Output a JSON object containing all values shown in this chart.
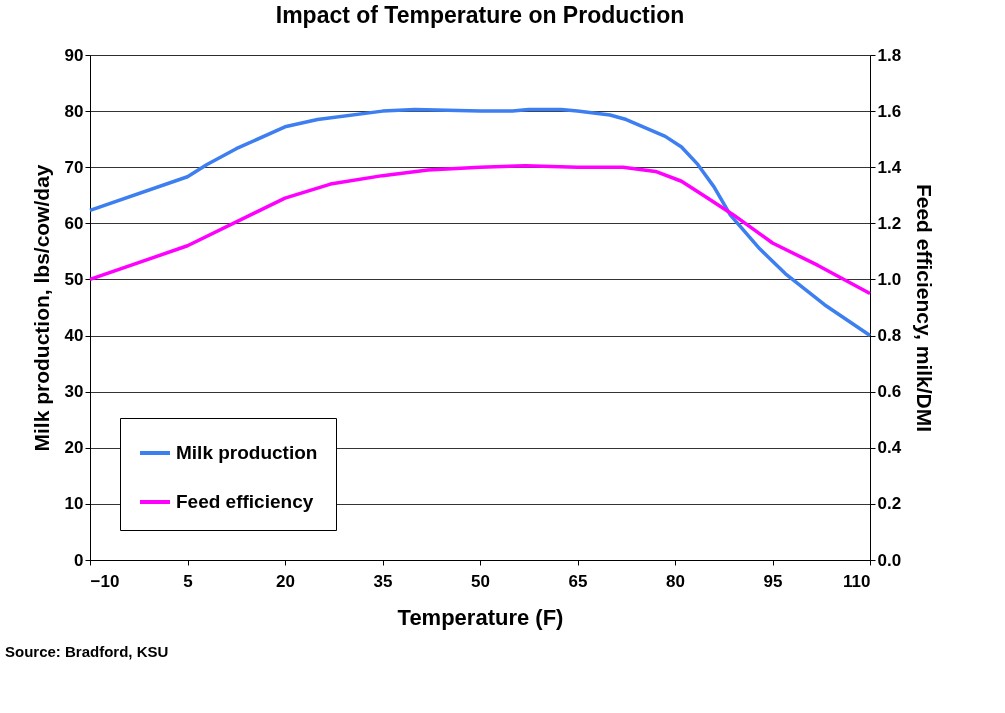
{
  "chart_data": {
    "type": "line",
    "title": "Impact of Temperature on Production",
    "xlabel": "Temperature (F)",
    "ylabel": "Milk production, lbs/cow/day",
    "y2label": "Feed efficiency, milk/DMI",
    "xlim": [
      -10,
      110
    ],
    "xticks": [
      -10,
      5,
      20,
      35,
      50,
      65,
      80,
      95,
      110
    ],
    "ylim": [
      0,
      90
    ],
    "yticks": [
      0,
      10,
      20,
      30,
      40,
      50,
      60,
      70,
      80,
      90
    ],
    "y2lim": [
      0,
      1.8
    ],
    "y2ticks": [
      {
        "value": 0,
        "label": "0.0"
      },
      {
        "value": 0.2,
        "label": "0.2"
      },
      {
        "value": 0.4,
        "label": "0.4"
      },
      {
        "value": 0.6,
        "label": "0.6"
      },
      {
        "value": 0.8,
        "label": "0.8"
      },
      {
        "value": 1.0,
        "label": "1.0"
      },
      {
        "value": 1.2,
        "label": "1.2"
      },
      {
        "value": 1.4,
        "label": "1.4"
      },
      {
        "value": 1.6,
        "label": "1.6"
      },
      {
        "value": 1.8,
        "label": "1.8"
      }
    ],
    "grid": "y",
    "legend": "bottom left",
    "marker": "none",
    "line_style": "solid",
    "annotations": [
      "Source:  Bradford, KSU"
    ],
    "series": [
      {
        "name": "Milk production",
        "color": "#3d7ef0",
        "x": [
          -10,
          5,
          8,
          12.5,
          20,
          25,
          35,
          40,
          50,
          55,
          57.5,
          62.5,
          65,
          70,
          72.5,
          78.5,
          81,
          83.5,
          86,
          88.5,
          93,
          97,
          103,
          110
        ],
        "values": [
          62.3,
          68.3,
          70.5,
          73.3,
          77.2,
          78.5,
          80,
          80.3,
          80,
          80,
          80.3,
          80.3,
          80,
          79.3,
          78.5,
          75.5,
          73.6,
          70.5,
          66.5,
          61.5,
          55.5,
          51,
          45.5,
          40
        ]
      },
      {
        "name": "Feed efficiency",
        "color": "#ff00ff",
        "axis": "y2",
        "x": [
          -10,
          5,
          20,
          27,
          35,
          42,
          50,
          57,
          65,
          72,
          77,
          81,
          85,
          89,
          95,
          102,
          110
        ],
        "values": [
          1.0,
          1.12,
          1.29,
          1.34,
          1.37,
          1.39,
          1.4,
          1.405,
          1.4,
          1.4,
          1.385,
          1.35,
          1.29,
          1.23,
          1.13,
          1.05,
          0.95
        ]
      }
    ]
  }
}
